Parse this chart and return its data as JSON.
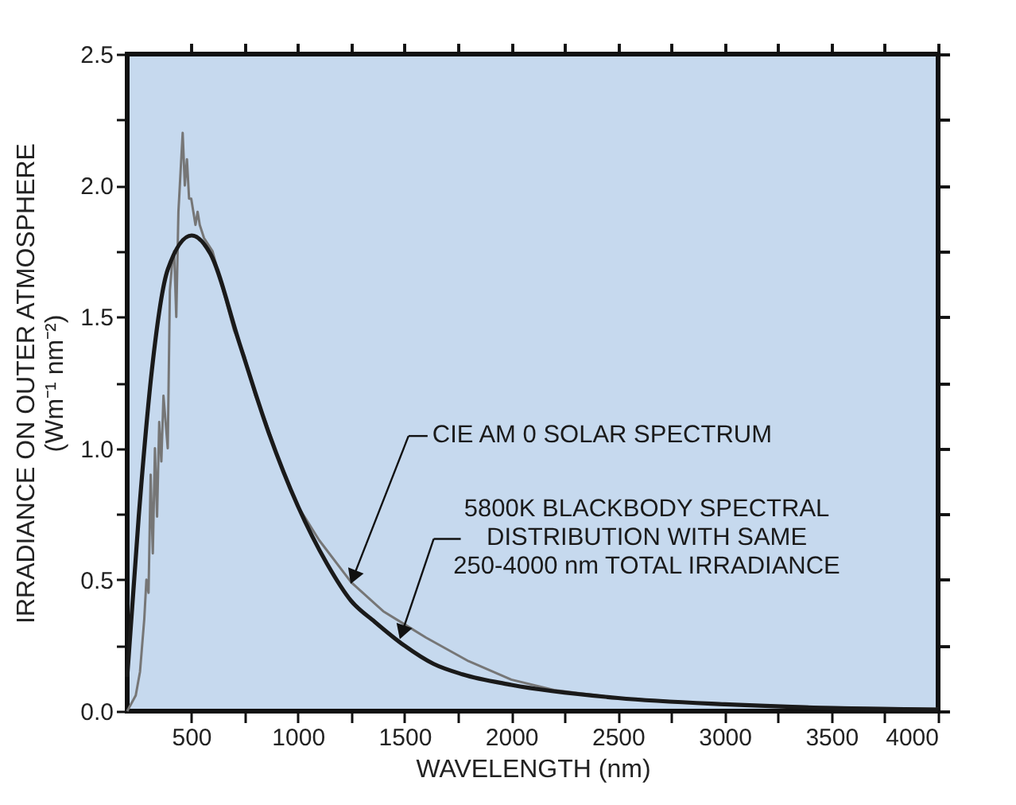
{
  "chart_data": {
    "type": "line",
    "xlabel": "WAVELENGTH (nm)",
    "ylabel": "IRRADIANCE ON OUTER ATMOSPHERE\n(Wm⁻¹ nm⁻²)",
    "xlim": [
      200,
      4000
    ],
    "ylim": [
      0,
      2.5
    ],
    "xticks": [
      500,
      {
        "value": 750,
        "label": null
      },
      1000,
      {
        "value": 1250,
        "label": null
      },
      1500,
      {
        "value": 1750,
        "label": null
      },
      2000,
      {
        "value": 2250,
        "label": null
      },
      2500,
      {
        "value": 2750,
        "label": null
      },
      3000,
      {
        "value": 3250,
        "label": null
      },
      3500,
      {
        "value": 3750,
        "label": null
      },
      4000
    ],
    "yticks": [
      {
        "value": 0,
        "label": "0.0"
      },
      {
        "value": 0.25,
        "label": null
      },
      {
        "value": 0.5,
        "label": "0.5"
      },
      {
        "value": 0.75,
        "label": null
      },
      {
        "value": 1,
        "label": "1.0"
      },
      {
        "value": 1.25,
        "label": null
      },
      {
        "value": 1.5,
        "label": "1.5"
      },
      {
        "value": 1.75,
        "label": null
      },
      {
        "value": 2,
        "label": "2.0"
      },
      {
        "value": 2.25,
        "label": null
      },
      {
        "value": 2.5,
        "label": "2.5"
      }
    ],
    "grid": false,
    "line_style": "solid",
    "marker": "none",
    "series": [
      {
        "color": "#767676",
        "x": [
          200,
          240,
          260,
          280,
          290,
          300,
          310,
          320,
          330,
          340,
          350,
          360,
          370,
          380,
          390,
          400,
          410,
          420,
          430,
          440,
          450,
          460,
          470,
          480,
          490,
          500,
          510,
          520,
          530,
          540,
          560,
          600,
          650,
          700,
          750,
          800,
          850,
          900,
          1000,
          1100,
          1250,
          1400,
          1600,
          1800,
          2000,
          2200,
          2500,
          3000,
          3500,
          4000
        ],
        "values": [
          0.0,
          0.06,
          0.15,
          0.35,
          0.5,
          0.45,
          0.9,
          0.6,
          1.0,
          0.74,
          1.1,
          0.95,
          1.2,
          1.1,
          1.0,
          1.6,
          1.7,
          1.75,
          1.5,
          1.9,
          2.05,
          2.2,
          2.0,
          2.1,
          1.95,
          1.95,
          1.9,
          1.85,
          1.9,
          1.85,
          1.8,
          1.75,
          1.6,
          1.45,
          1.35,
          1.2,
          1.1,
          0.98,
          0.78,
          0.65,
          0.49,
          0.38,
          0.28,
          0.19,
          0.12,
          0.08,
          0.05,
          0.025,
          0.014,
          0.008
        ]
      },
      {
        "color": "#1a1a1a",
        "x": [
          200,
          254,
          316,
          390,
          502,
          590,
          726,
          863,
          1000,
          1137,
          1249,
          1360,
          1498,
          1635,
          1771,
          2000,
          2500,
          3000,
          3500,
          4000
        ],
        "values": [
          0.13,
          0.74,
          1.3,
          1.68,
          1.81,
          1.74,
          1.4,
          1.06,
          0.78,
          0.56,
          0.42,
          0.34,
          0.25,
          0.18,
          0.14,
          0.1,
          0.05,
          0.026,
          0.012,
          0.006
        ]
      }
    ],
    "annotations": [
      {
        "text": "CIE AM 0 SOLAR SPECTRUM",
        "x": 1250,
        "y": 0.49
      },
      {
        "text": "5800K BLACKBODY SPECTRAL\nDISTRIBUTION WITH SAME\n250-4000 nm TOTAL IRRADIANCE",
        "x": 1480,
        "y": 0.28
      }
    ]
  }
}
